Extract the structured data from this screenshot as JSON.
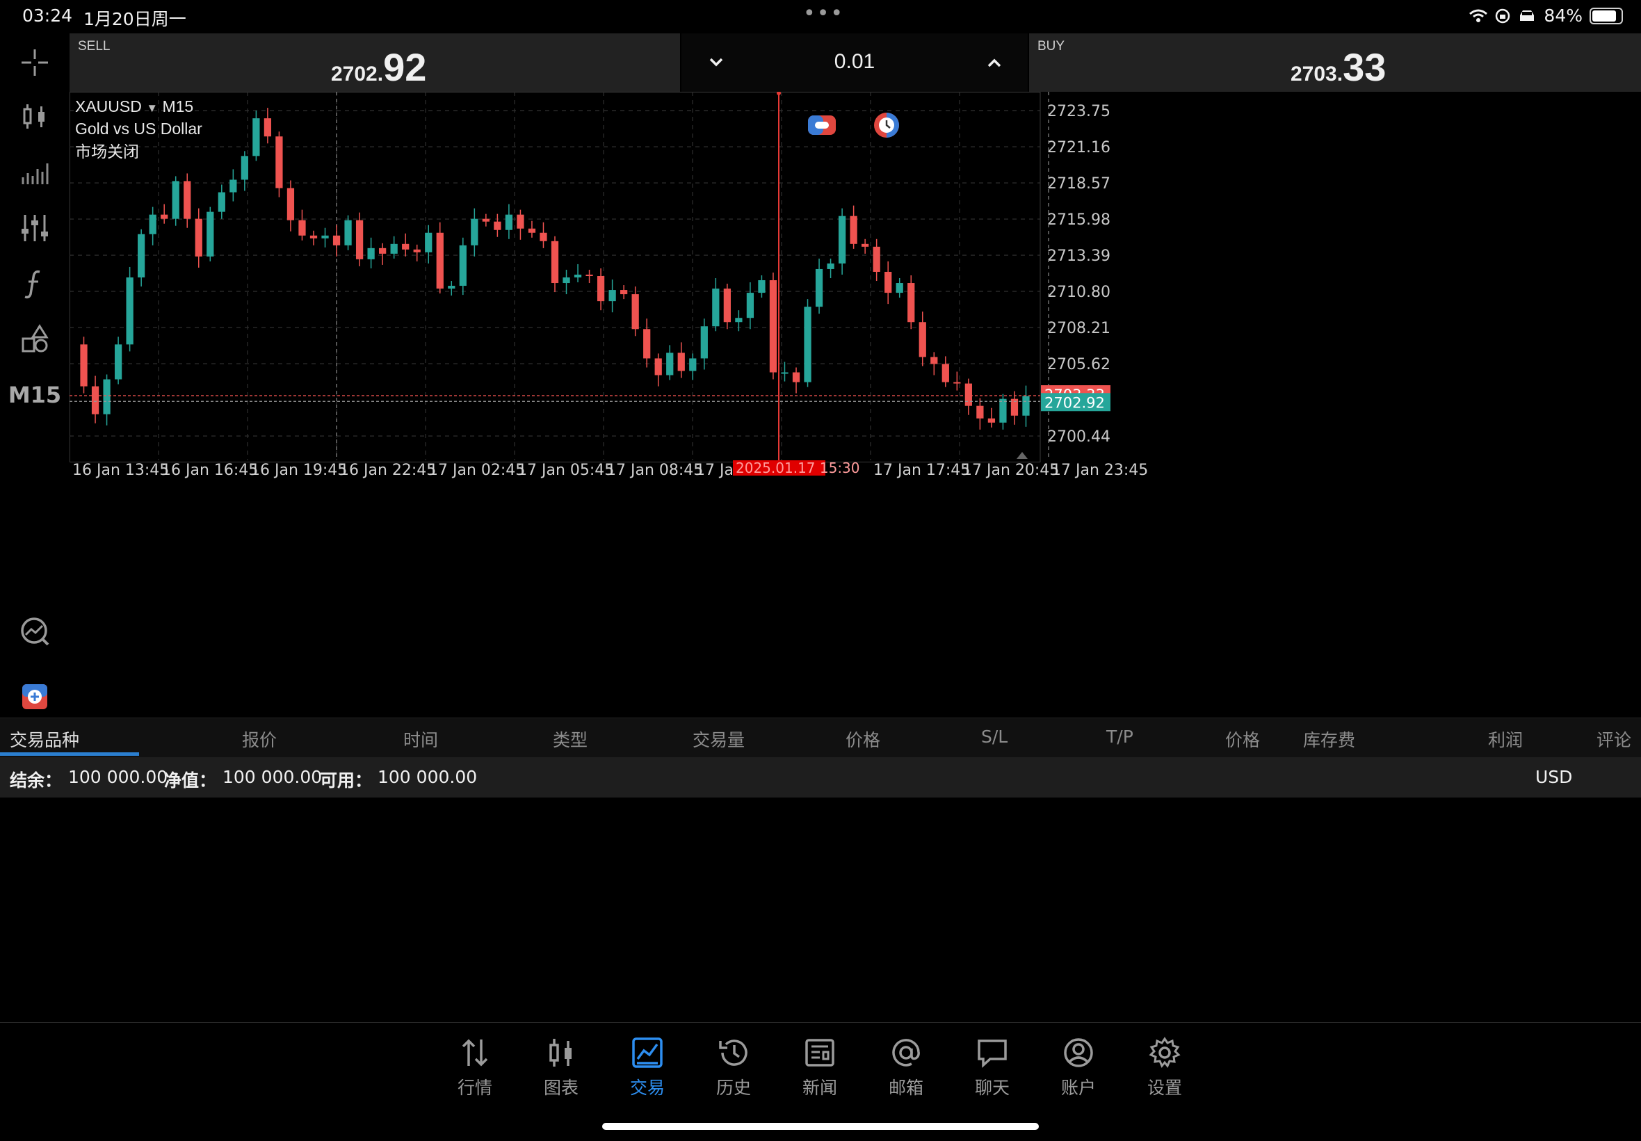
{
  "status_bar": {
    "time": "03:24",
    "date": "1月20日周一",
    "battery_text": "84%",
    "battery_level": 0.84
  },
  "toolbar": {
    "icons": [
      "crosshair-icon",
      "candlestick-icon",
      "bars-icon",
      "indicator-sliders-icon",
      "function-icon",
      "objects-icon",
      "timeframe",
      "chart-search-icon",
      "trade-add-icon"
    ],
    "timeframe_label": "M15"
  },
  "trade_bar": {
    "sell_label": "SELL",
    "sell_price_small": "2702.",
    "sell_price_big": "92",
    "buy_label": "BUY",
    "buy_price_small": "2703.",
    "buy_price_big": "33",
    "lot": "0.01"
  },
  "chart_info": {
    "symbol": "XAUUSD",
    "timeframe": "M15",
    "description": "Gold vs US Dollar",
    "market_status": "市场关闭",
    "colors": {
      "bull": "#26a69a",
      "bear": "#ef5350",
      "cursor": "#e53935",
      "ask_tag": "#ef5350",
      "bid_tag": "#26a69a"
    }
  },
  "chart_data": {
    "type": "candlestick",
    "symbol": "XAUUSD",
    "timeframe": "M15",
    "y_ticks": [
      "2723.75",
      "2721.16",
      "2718.57",
      "2715.98",
      "2713.39",
      "2710.80",
      "2708.21",
      "2705.62",
      "2700.44"
    ],
    "ylim": [
      2698.7,
      2724.9
    ],
    "x_ticks": [
      "16 Jan 13:45",
      "16 Jan 16:45",
      "16 Jan 19:45",
      "16 Jan 22:45",
      "17 Jan 02:45",
      "17 Jan 05:45",
      "17 Jan 08:45",
      "17 Jan 11:45",
      "17 Jan 17:45",
      "17 Jan 20:45",
      "17 Jan 23:45"
    ],
    "cursor_label": "2025.01.17 15:30",
    "ask_price": "2703.33",
    "ask_label": "2703.33",
    "bid_price": "2702.92",
    "bid_label": "2702.92",
    "close_path": [
      2707.0,
      2704.0,
      2702.0,
      2704.5,
      2707.0,
      2711.8,
      2714.9,
      2716.3,
      2716.0,
      2718.7,
      2716.0,
      2713.3,
      2716.5,
      2717.9,
      2718.8,
      2720.5,
      2723.2,
      2721.9,
      2718.2,
      2715.9,
      2714.8,
      2714.6,
      2714.8,
      2714.1,
      2715.9,
      2713.1,
      2713.9,
      2713.5,
      2714.2,
      2713.8,
      2713.6,
      2715.0,
      2711.0,
      2711.2,
      2714.1,
      2716.0,
      2715.8,
      2715.2,
      2716.3,
      2715.3,
      2715.0,
      2714.4,
      2711.4,
      2711.8,
      2712.0,
      2711.9,
      2710.1,
      2710.9,
      2710.6,
      2708.1,
      2706.0,
      2704.8,
      2706.4,
      2705.1,
      2706.0,
      2708.3,
      2711.0,
      2708.6,
      2708.9,
      2710.7,
      2711.6,
      2705.0,
      2705.0,
      2704.3,
      2709.7,
      2712.4,
      2712.8,
      2716.2,
      2714.2,
      2714.0,
      2712.2,
      2710.7,
      2711.4,
      2708.6,
      2706.1,
      2705.6,
      2704.3,
      2704.2,
      2702.6,
      2701.7,
      2701.4,
      2703.1,
      2701.9,
      2703.3
    ]
  },
  "positions_table": {
    "tab_label": "交易品种",
    "headers": [
      "交易品种",
      "报价",
      "时间",
      "类型",
      "交易量",
      "价格",
      "S/L",
      "T/P",
      "价格",
      "库存费",
      "利润",
      "评论"
    ]
  },
  "account": {
    "balance_label": "结余：",
    "balance": "100 000.00",
    "equity_label": "净值：",
    "equity": "100 000.00",
    "free_label": "可用：",
    "free": "100 000.00",
    "currency": "USD"
  },
  "nav": {
    "items": [
      {
        "label": "行情",
        "icon": "quotes-icon"
      },
      {
        "label": "图表",
        "icon": "chart-icon"
      },
      {
        "label": "交易",
        "icon": "trade-icon"
      },
      {
        "label": "历史",
        "icon": "history-icon"
      },
      {
        "label": "新闻",
        "icon": "news-icon"
      },
      {
        "label": "邮箱",
        "icon": "mail-icon"
      },
      {
        "label": "聊天",
        "icon": "chat-icon"
      },
      {
        "label": "账户",
        "icon": "account-icon"
      },
      {
        "label": "设置",
        "icon": "settings-icon"
      }
    ],
    "active": "交易"
  }
}
